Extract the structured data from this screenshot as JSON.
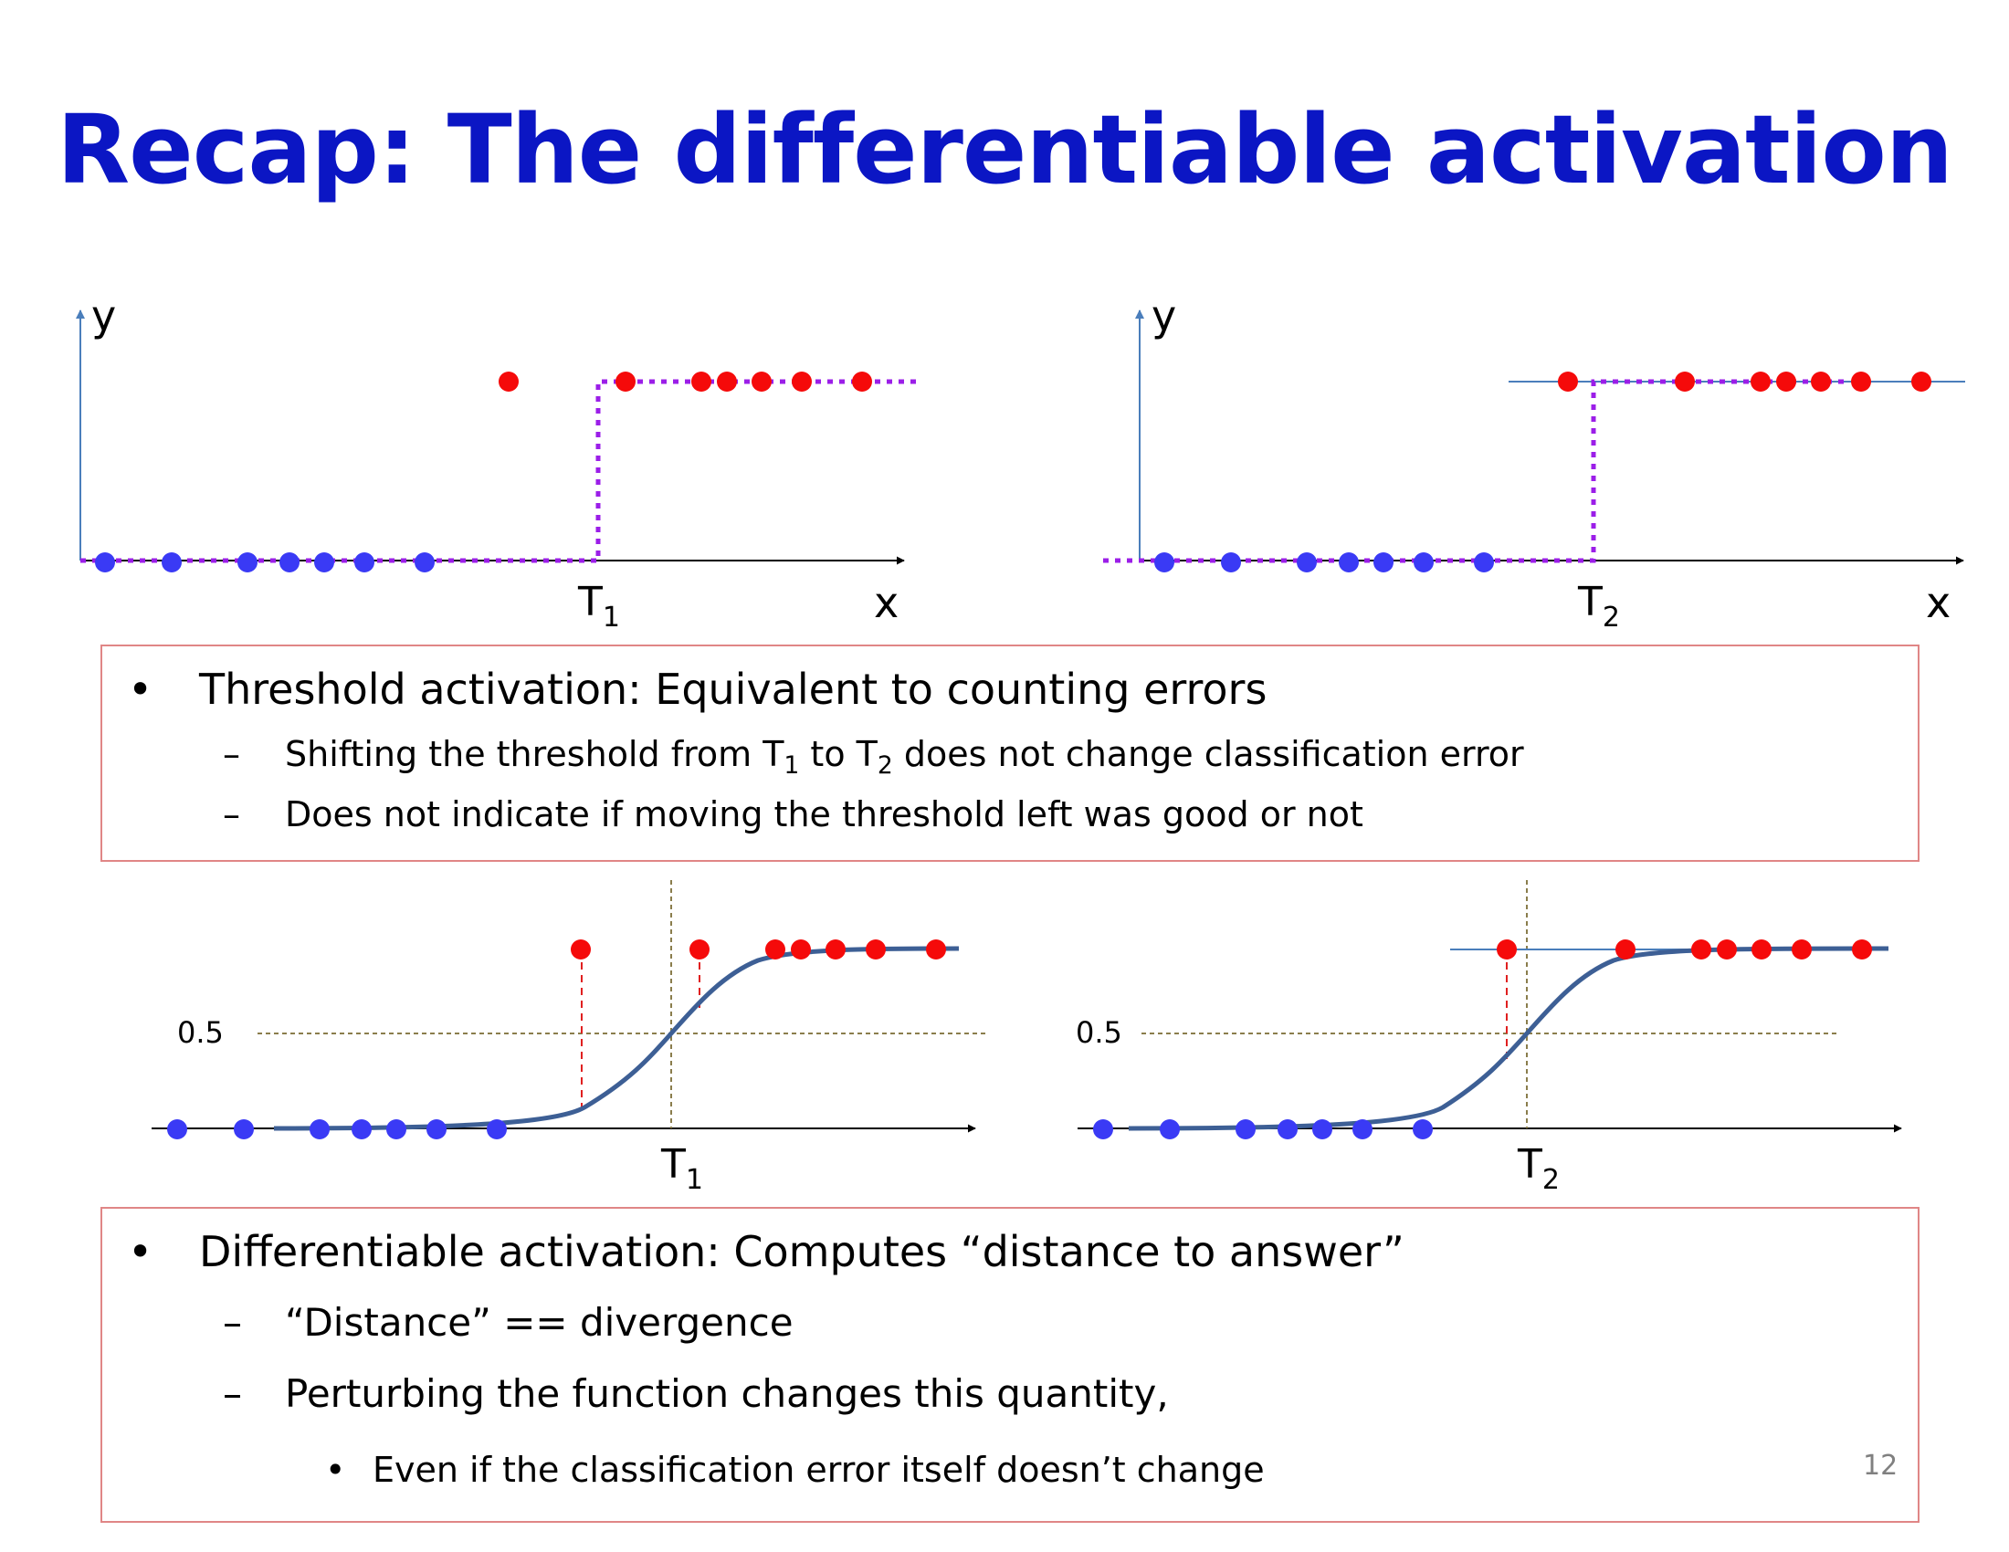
{
  "title": "Recap: The differentiable activation",
  "top_left": {
    "y_axis_label": "y",
    "x_axis_label": "x",
    "threshold_label": "T",
    "threshold_sub": "1"
  },
  "top_right": {
    "y_axis_label": "y",
    "x_axis_label": "x",
    "threshold_label": "T",
    "threshold_sub": "2"
  },
  "box1": {
    "bullet": "Threshold activation:  Equivalent to counting errors",
    "sub1": {
      "part1": "Shifting the threshold from T",
      "sub_a": "1",
      "part2": " to T",
      "sub_b": "2",
      "part3": " does not change classification error"
    },
    "sub2": "Does not indicate if moving the threshold left was good or not"
  },
  "bottom_left": {
    "half_label": "0.5",
    "threshold_label": "T",
    "threshold_sub": "1"
  },
  "bottom_right": {
    "half_label": "0.5",
    "threshold_label": "T",
    "threshold_sub": "2"
  },
  "box2": {
    "bullet": "Differentiable activation:  Computes “distance to answer”",
    "sub1": "“Distance” == divergence",
    "sub2": "Perturbing the function changes this quantity,",
    "subsub1": "Even if the classification error itself doesn’t change"
  },
  "marks": {
    "bullet": "•",
    "dash": "–"
  },
  "page_number": "12",
  "colors": {
    "title": "#0b16c4",
    "blue_point": "#3a3af5",
    "red_point": "#f50a0a",
    "threshold_line": "#9b1ee8",
    "axis": "#4a7ebb",
    "sigmoid": "#3d5f95",
    "reference": "#8a7d4c",
    "box_border": "#e08686"
  }
}
